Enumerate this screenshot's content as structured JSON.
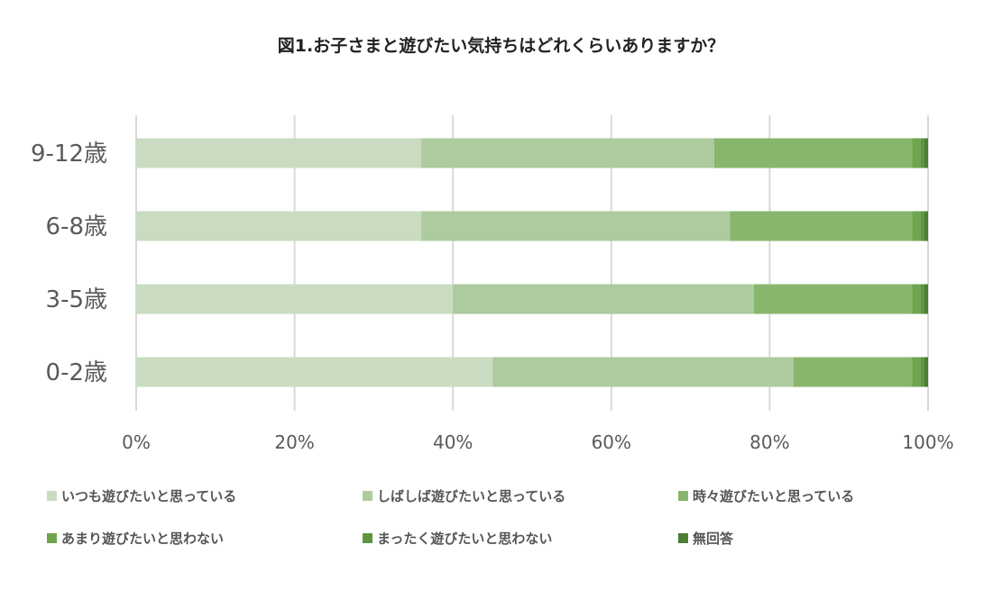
{
  "chart_data": {
    "type": "bar",
    "orientation": "horizontal",
    "stacked": true,
    "title": "図1.お子さまと遊びたい気持ちはどれくらいありますか？",
    "categories": [
      "9-12歳",
      "6-8歳",
      "3-5歳",
      "0-2歳"
    ],
    "xlim": [
      0,
      100
    ],
    "xticks": [
      "0%",
      "20%",
      "40%",
      "60%",
      "80%",
      "100%"
    ],
    "grid": true,
    "legend_position": "bottom",
    "series": [
      {
        "name": "いつも遊びたいと思っている",
        "color": "#c9dcc1",
        "values": [
          36,
          36,
          40,
          45
        ]
      },
      {
        "name": "しばしば遊びたいと思っている",
        "color": "#adcb9e",
        "values": [
          37,
          39,
          38,
          38
        ]
      },
      {
        "name": "時々遊びたいと思っている",
        "color": "#87b66c",
        "values": [
          25,
          23,
          20,
          15
        ]
      },
      {
        "name": "あまり遊びたいと思わない",
        "color": "#6fa64d",
        "values": [
          1,
          1,
          1,
          1
        ]
      },
      {
        "name": "まったく遊びたいと思わない",
        "color": "#5c963f",
        "values": [
          0.5,
          0.5,
          0.5,
          0.5
        ]
      },
      {
        "name": "無回答",
        "color": "#4a7f33",
        "values": [
          0.5,
          0.5,
          0.5,
          0.5
        ]
      }
    ]
  }
}
